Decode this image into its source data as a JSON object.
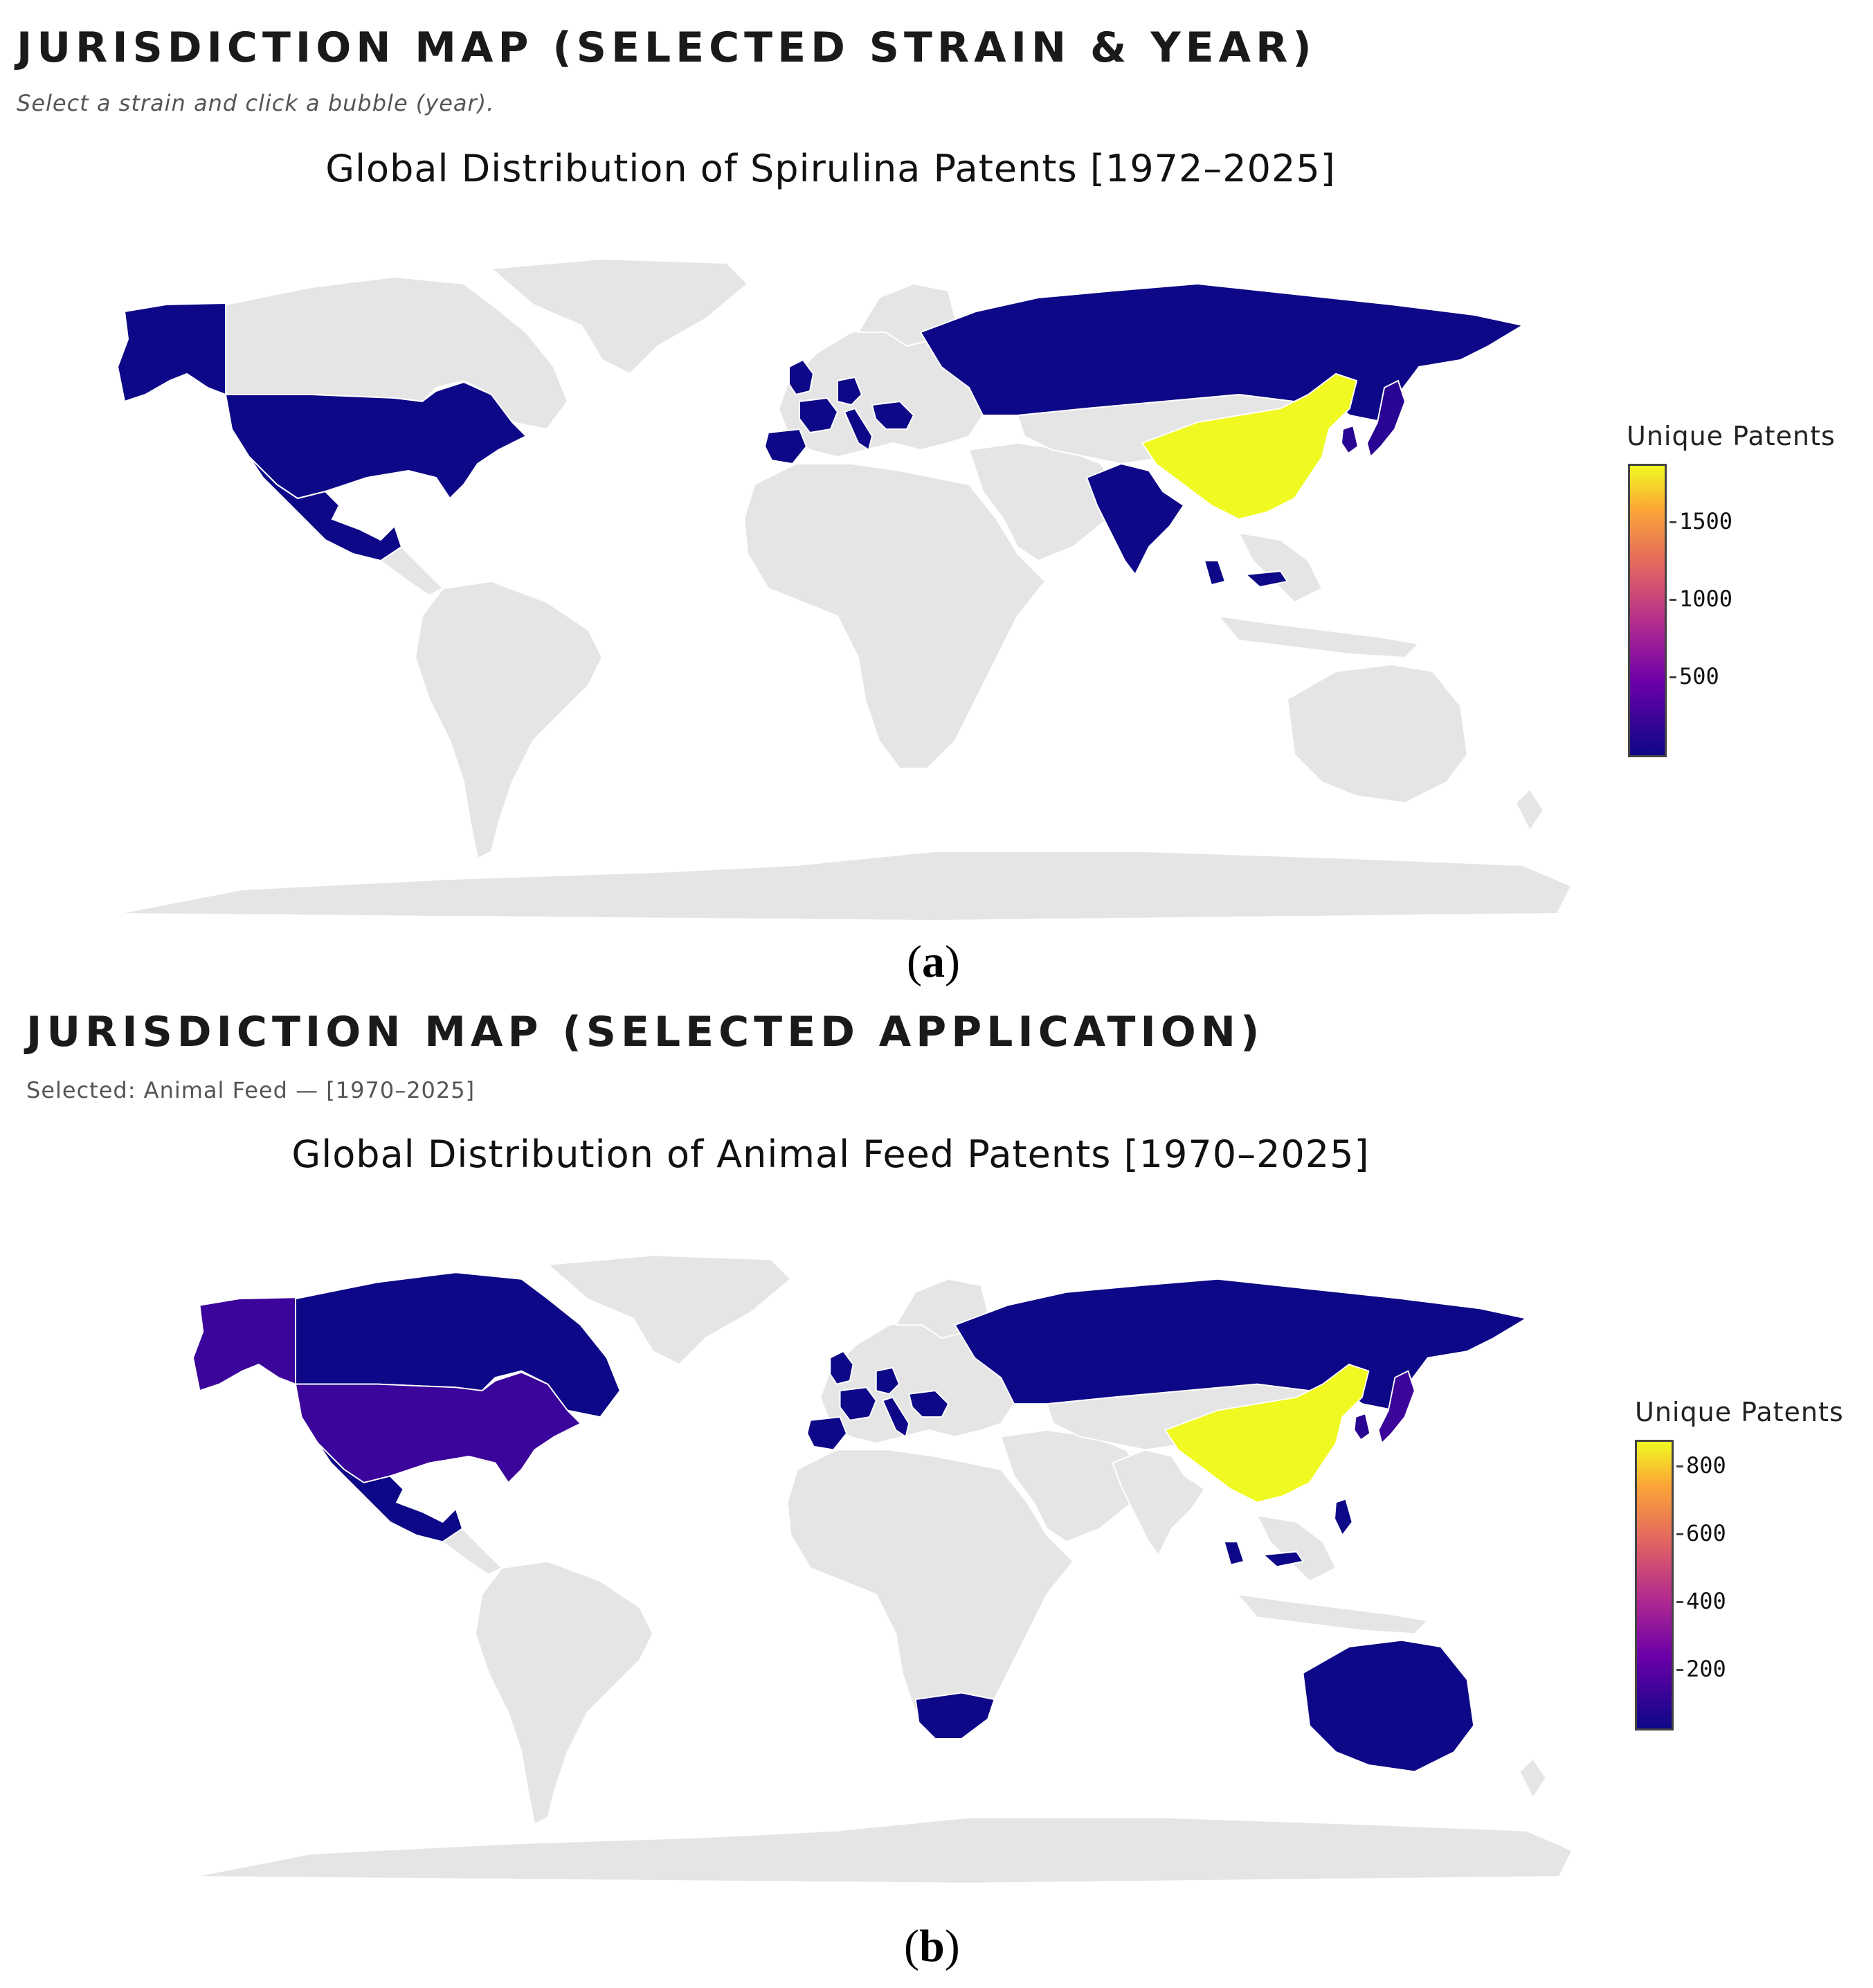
{
  "colors": {
    "land_default": "#e5e5e5",
    "border": "#ffffff",
    "low": "#0d0887",
    "low_mid": "#2a0593",
    "mid_low": "#3b049a",
    "high": "#f0f921",
    "colorscale": "Plasma"
  },
  "panel_a": {
    "heading": "JURISDICTION MAP (SELECTED STRAIN & YEAR)",
    "subtitle": "Select a strain and click a bubble (year).",
    "map_title": "Global Distribution of Spirulina Patents [1972–2025]",
    "colorbar_title": "Unique Patents",
    "colorbar_ticks": [
      "1500",
      "1000",
      "500"
    ],
    "colorbar_range": [
      0,
      1900
    ],
    "label_prefix": "(",
    "label_letter": "a",
    "label_suffix": ")",
    "highlighted": {
      "China": "high",
      "United States": "low",
      "Alaska": "low",
      "Mexico": "low",
      "Russia": "low",
      "India": "low",
      "Japan": "low_mid",
      "Korea": "low_mid",
      "United Kingdom": "low",
      "France": "low",
      "Spain": "low",
      "Germany": "low",
      "Italy": "low",
      "Balkans": "low",
      "Southeast Asia": "low"
    }
  },
  "panel_b": {
    "heading": "JURISDICTION MAP (SELECTED APPLICATION)",
    "subtitle": "Selected: Animal Feed — [1970–2025]",
    "map_title": "Global Distribution of Animal Feed Patents [1970–2025]",
    "colorbar_title": "Unique Patents",
    "colorbar_ticks": [
      "800",
      "600",
      "400",
      "200"
    ],
    "colorbar_range": [
      0,
      860
    ],
    "label_prefix": "(",
    "label_letter": "b",
    "label_suffix": ")",
    "highlighted": {
      "China": "high",
      "United States": "mid_low",
      "Alaska": "mid_low",
      "Canada": "low",
      "Mexico": "low",
      "Russia": "low",
      "Japan": "mid_low",
      "Korea": "low_mid",
      "Australia": "low",
      "South Africa": "low",
      "United Kingdom": "low",
      "France": "low",
      "Spain": "low",
      "Germany": "low",
      "Italy": "low",
      "Balkans": "low",
      "Southeast Asia": "low",
      "Philippines": "low"
    }
  }
}
